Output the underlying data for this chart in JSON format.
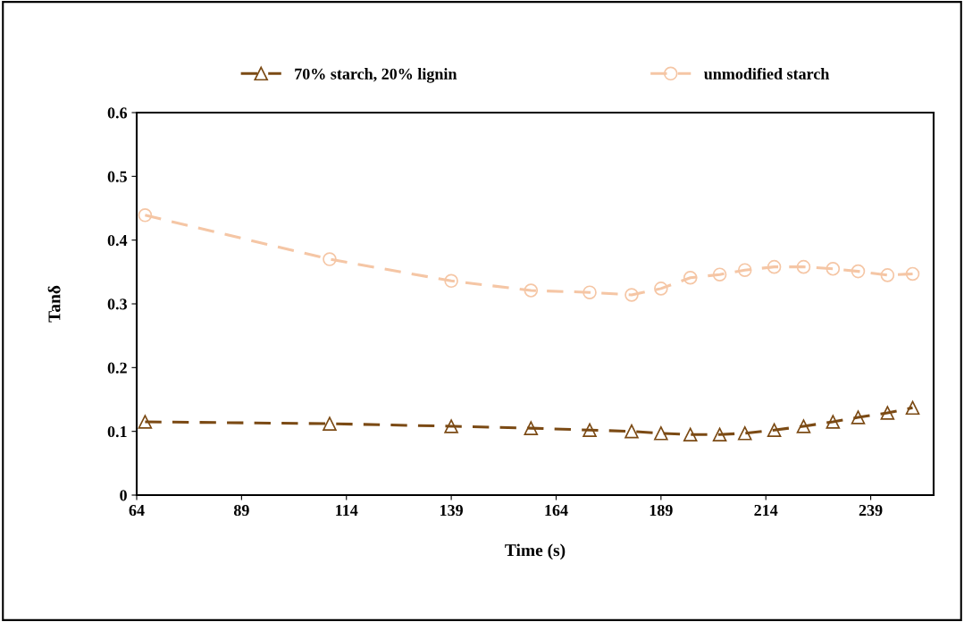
{
  "chart_data": {
    "type": "line",
    "xlabel": "Time (s)",
    "ylabel": "Tanδ",
    "xlim": [
      64,
      254
    ],
    "xticks": [
      64,
      89,
      114,
      139,
      164,
      189,
      214,
      239
    ],
    "ylim": [
      0,
      0.6
    ],
    "yticks": [
      0,
      0.1,
      0.2,
      0.3,
      0.4,
      0.5,
      0.6
    ],
    "grid": false,
    "legend": "top",
    "line_style": "dashed",
    "series": [
      {
        "name": "70% starch, 20% lignin",
        "color": "#7b4a14",
        "marker": "triangle",
        "x": [
          66,
          110,
          139,
          158,
          172,
          182,
          189,
          196,
          203,
          209,
          216,
          223,
          230,
          236,
          243,
          249
        ],
        "values": [
          0.115,
          0.112,
          0.108,
          0.105,
          0.102,
          0.1,
          0.097,
          0.095,
          0.095,
          0.097,
          0.102,
          0.108,
          0.115,
          0.122,
          0.129,
          0.137
        ]
      },
      {
        "name": "unmodified starch",
        "color": "#f5c6a5",
        "marker": "circle",
        "x": [
          66,
          110,
          139,
          158,
          172,
          182,
          189,
          196,
          203,
          209,
          216,
          223,
          230,
          236,
          243,
          249
        ],
        "values": [
          0.439,
          0.37,
          0.336,
          0.321,
          0.318,
          0.314,
          0.324,
          0.341,
          0.346,
          0.353,
          0.358,
          0.358,
          0.355,
          0.351,
          0.345,
          0.347
        ]
      }
    ]
  }
}
